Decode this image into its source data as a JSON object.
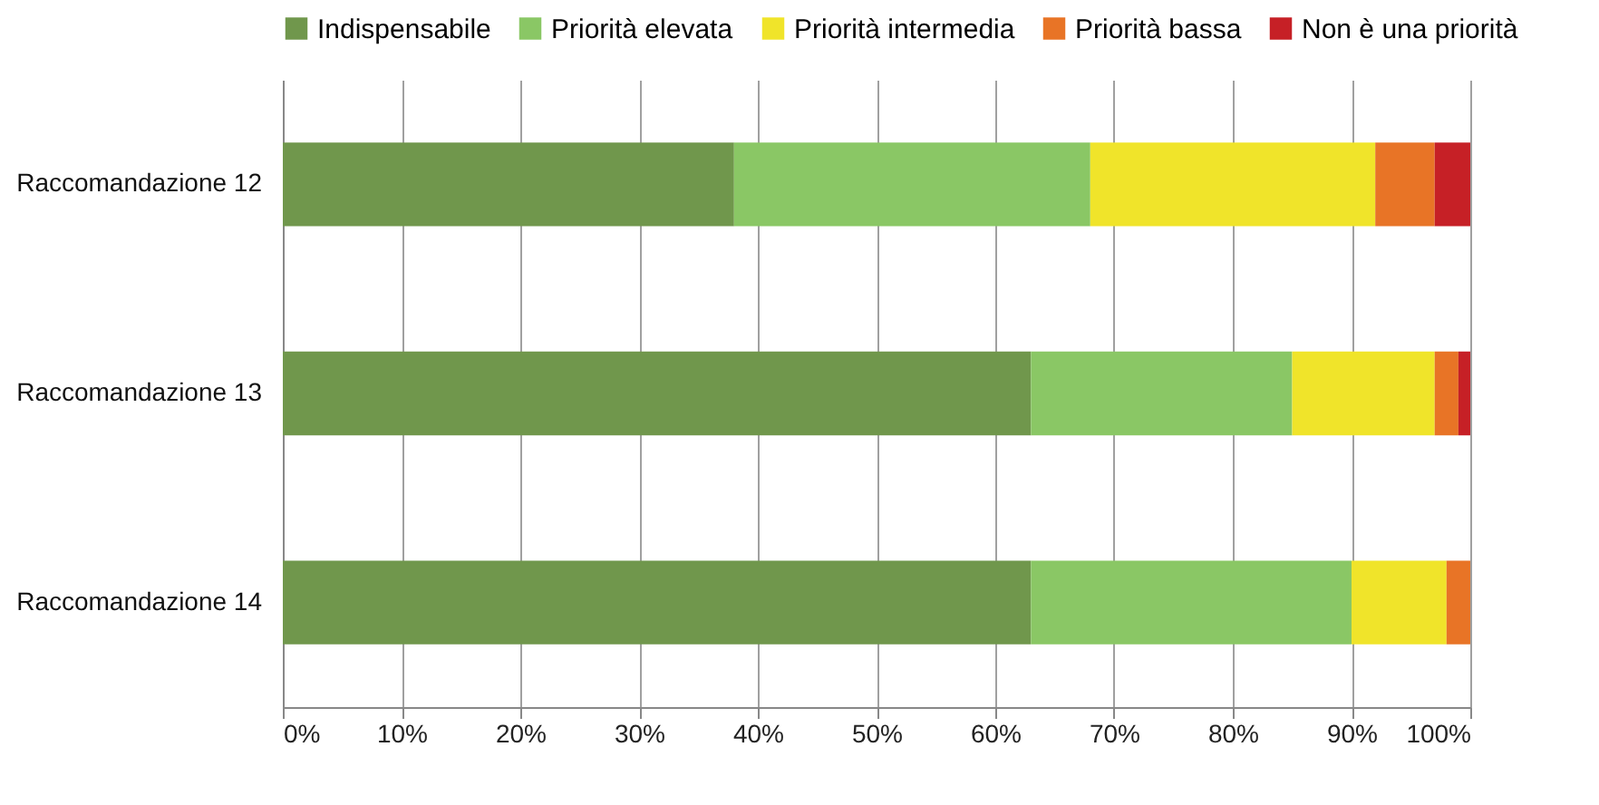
{
  "chart_data": {
    "type": "bar",
    "orientation": "horizontal",
    "stacked": true,
    "categories": [
      "Raccomandazione 12",
      "Raccomandazione 13",
      "Raccomandazione 14"
    ],
    "series": [
      {
        "name": "Indispensabile",
        "color": "#70974c",
        "values": [
          38,
          63,
          63
        ]
      },
      {
        "name": "Priorità elevata",
        "color": "#8ac765",
        "values": [
          30,
          22,
          27
        ]
      },
      {
        "name": "Priorità intermedia",
        "color": "#f0e42a",
        "values": [
          24,
          12,
          8
        ]
      },
      {
        "name": "Priorità bassa",
        "color": "#e87426",
        "values": [
          5,
          2,
          2
        ]
      },
      {
        "name": "Non è una priorità",
        "color": "#c62026",
        "values": [
          3,
          1,
          0
        ]
      }
    ],
    "xlim": [
      0,
      100
    ],
    "xticks": [
      {
        "value": 0,
        "label": "0%"
      },
      {
        "value": 10,
        "label": "10%"
      },
      {
        "value": 20,
        "label": "20%"
      },
      {
        "value": 30,
        "label": "30%"
      },
      {
        "value": 40,
        "label": "40%"
      },
      {
        "value": 50,
        "label": "50%"
      },
      {
        "value": 60,
        "label": "60%"
      },
      {
        "value": 70,
        "label": "70%"
      },
      {
        "value": 80,
        "label": "80%"
      },
      {
        "value": 90,
        "label": "90%"
      },
      {
        "value": 100,
        "label": "100%"
      }
    ],
    "grid": "x",
    "legend": "top"
  }
}
